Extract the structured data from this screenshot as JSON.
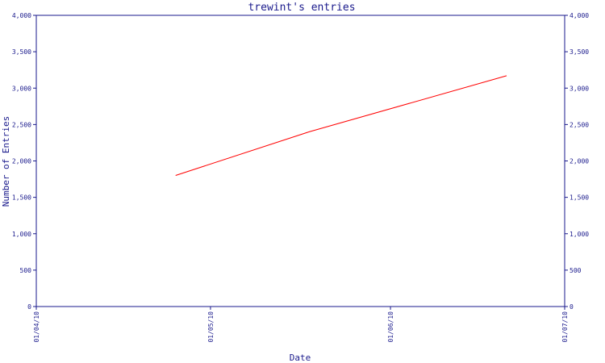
{
  "chart_data": {
    "type": "line",
    "title": "trewint's entries",
    "xlabel": "Date",
    "ylabel": "Number of Entries",
    "ylim": [
      0,
      4000
    ],
    "y_ticks": [
      0,
      500,
      1000,
      1500,
      2000,
      2500,
      3000,
      3500,
      4000
    ],
    "y_tick_labels": [
      "0",
      "500",
      "1,000",
      "1,500",
      "2,000",
      "2,500",
      "3,000",
      "3,500",
      "4,000"
    ],
    "xlim": [
      "2010-04-01",
      "2010-07-01"
    ],
    "x_ticks": [
      "2010-04-01",
      "2010-05-01",
      "2010-06-01",
      "2010-07-01"
    ],
    "x_tick_labels": [
      "01/04/10",
      "01/05/10",
      "01/06/10",
      "01/07/10"
    ],
    "right_axis": true,
    "grid": false,
    "series": [
      {
        "color": "#ff0000",
        "points": [
          {
            "x": "2010-04-25",
            "y": 1800
          },
          {
            "x": "2010-05-18",
            "y": 2400
          },
          {
            "x": "2010-06-21",
            "y": 3170
          }
        ]
      }
    ]
  }
}
